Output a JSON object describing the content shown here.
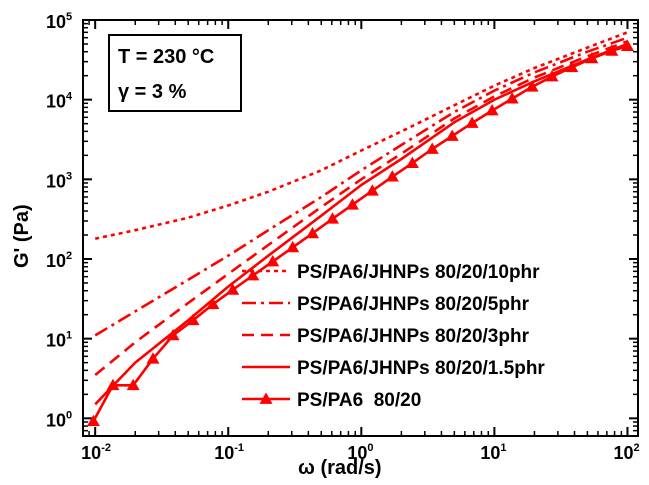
{
  "chart_data": {
    "type": "line",
    "title": "",
    "xlabel": "ω (rad/s)",
    "ylabel": "G' (Pa)",
    "x_scale": "log",
    "y_scale": "log",
    "xlim": [
      0.0081,
      120
    ],
    "ylim": [
      0.6,
      100000
    ],
    "grid": false,
    "legend_position": "bottom-right",
    "color": "#ff0000",
    "x_ticks": [
      {
        "value": 0.01,
        "base": "10",
        "exp": "-2"
      },
      {
        "value": 0.1,
        "base": "10",
        "exp": "-1"
      },
      {
        "value": 1,
        "base": "10",
        "exp": "0"
      },
      {
        "value": 10,
        "base": "10",
        "exp": "1"
      },
      {
        "value": 100,
        "base": "10",
        "exp": "2"
      }
    ],
    "y_ticks": [
      {
        "value": 1,
        "base": "10",
        "exp": "0"
      },
      {
        "value": 10,
        "base": "10",
        "exp": "1"
      },
      {
        "value": 100,
        "base": "10",
        "exp": "2"
      },
      {
        "value": 1000,
        "base": "10",
        "exp": "3"
      },
      {
        "value": 10000,
        "base": "10",
        "exp": "4"
      },
      {
        "value": 100000,
        "base": "10",
        "exp": "5"
      }
    ],
    "annotations": [
      "T = 230 °C",
      "γ = 3 %"
    ],
    "series": [
      {
        "name": "PS/PA6/JHNPs 80/20/10phr",
        "style": "dotted",
        "x": [
          0.01,
          0.02,
          0.05,
          0.1,
          0.2,
          0.5,
          1,
          2,
          5,
          10,
          20,
          50,
          100
        ],
        "y": [
          180,
          230,
          330,
          470,
          700,
          1300,
          2300,
          4000,
          8500,
          15000,
          25000,
          45000,
          70000
        ]
      },
      {
        "name": "PS/PA6/JHNPs 80/20/5phr",
        "style": "dashdot",
        "x": [
          0.01,
          0.02,
          0.05,
          0.1,
          0.2,
          0.5,
          1,
          2,
          5,
          10,
          20,
          50,
          100
        ],
        "y": [
          11,
          22,
          55,
          110,
          230,
          600,
          1300,
          2700,
          7000,
          13000,
          22000,
          40000,
          60000
        ]
      },
      {
        "name": "PS/PA6/JHNPs 80/20/3phr",
        "style": "dashed",
        "x": [
          0.01,
          0.02,
          0.05,
          0.1,
          0.2,
          0.5,
          1,
          2,
          5,
          10,
          20,
          50,
          100
        ],
        "y": [
          3.5,
          9,
          28,
          65,
          150,
          450,
          1000,
          2100,
          5800,
          11000,
          19000,
          35000,
          54000
        ]
      },
      {
        "name": "PS/PA6/JHNPs 80/20/1.5phr",
        "style": "solid",
        "x": [
          0.01,
          0.02,
          0.05,
          0.1,
          0.2,
          0.5,
          1,
          2,
          5,
          10,
          20,
          50,
          100
        ],
        "y": [
          1.5,
          5,
          17,
          45,
          110,
          350,
          850,
          1800,
          5200,
          10000,
          17000,
          32000,
          50000
        ]
      },
      {
        "name": "PS/PA6  80/20",
        "style": "solid-triangle",
        "x": [
          0.0097,
          0.0136,
          0.0193,
          0.0272,
          0.0385,
          0.0543,
          0.0767,
          0.108,
          0.153,
          0.216,
          0.305,
          0.43,
          0.607,
          0.858,
          1.21,
          1.71,
          2.42,
          3.41,
          4.82,
          6.8,
          9.61,
          13.6,
          19.2,
          27.1,
          38.2,
          54,
          76.3,
          100
        ],
        "y": [
          0.92,
          2.6,
          2.6,
          5.6,
          11,
          17,
          27,
          41,
          62,
          93,
          140,
          210,
          320,
          480,
          720,
          1080,
          1600,
          2400,
          3500,
          5100,
          7300,
          10300,
          14500,
          19500,
          25500,
          33000,
          41000,
          47000
        ]
      }
    ]
  }
}
